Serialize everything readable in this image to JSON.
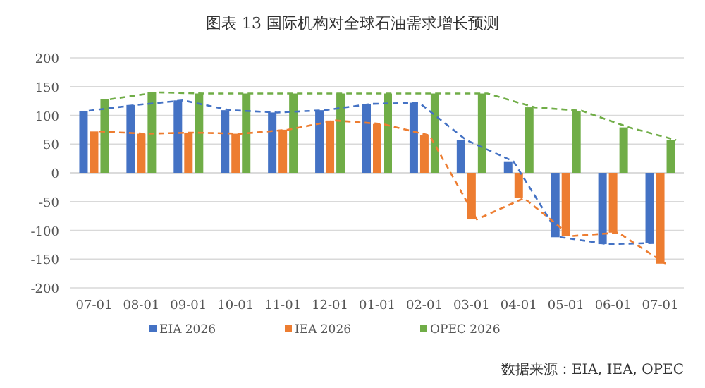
{
  "chart_data": {
    "type": "bar",
    "title": "图表 13    国际机构对全球石油需求增长预测",
    "categories": [
      "07-01",
      "08-01",
      "09-01",
      "10-01",
      "11-01",
      "12-01",
      "01-01",
      "02-01",
      "03-01",
      "04-01",
      "05-01",
      "06-01",
      "07-01"
    ],
    "series": [
      {
        "name": "EIA 2026",
        "color": "#4472c4",
        "values": [
          108,
          118,
          126,
          109,
          105,
          109,
          120,
          122,
          57,
          20,
          -112,
          -124,
          -122
        ]
      },
      {
        "name": "IEA 2026",
        "color": "#ed7d31",
        "values": [
          72,
          68,
          70,
          68,
          75,
          91,
          85,
          65,
          -81,
          -44,
          -110,
          -104,
          -158
        ]
      },
      {
        "name": "OPEC 2026",
        "color": "#70ad47",
        "values": [
          128,
          140,
          138,
          138,
          138,
          138,
          138,
          138,
          138,
          114,
          108,
          79,
          57
        ]
      },
      {
        "type": "line",
        "color": "#4472c4",
        "line_style": "dashed",
        "values": [
          108,
          118,
          126,
          109,
          105,
          109,
          120,
          122,
          57,
          20,
          -112,
          -124,
          -122
        ]
      },
      {
        "type": "line",
        "color": "#ed7d31",
        "line_style": "dashed",
        "values": [
          72,
          68,
          70,
          68,
          75,
          91,
          85,
          65,
          -81,
          -44,
          -110,
          -104,
          -158
        ]
      },
      {
        "type": "line",
        "color": "#70ad47",
        "line_style": "dashed",
        "values": [
          128,
          140,
          138,
          138,
          138,
          138,
          138,
          138,
          138,
          114,
          108,
          79,
          57
        ]
      }
    ],
    "ylim": [
      -200,
      200
    ],
    "yticks": [
      -200,
      -150,
      -100,
      -50,
      0,
      50,
      100,
      150,
      200
    ],
    "grid": "y",
    "legend": "bottom",
    "annotations": [
      "数据来源：EIA, IEA, OPEC"
    ]
  }
}
